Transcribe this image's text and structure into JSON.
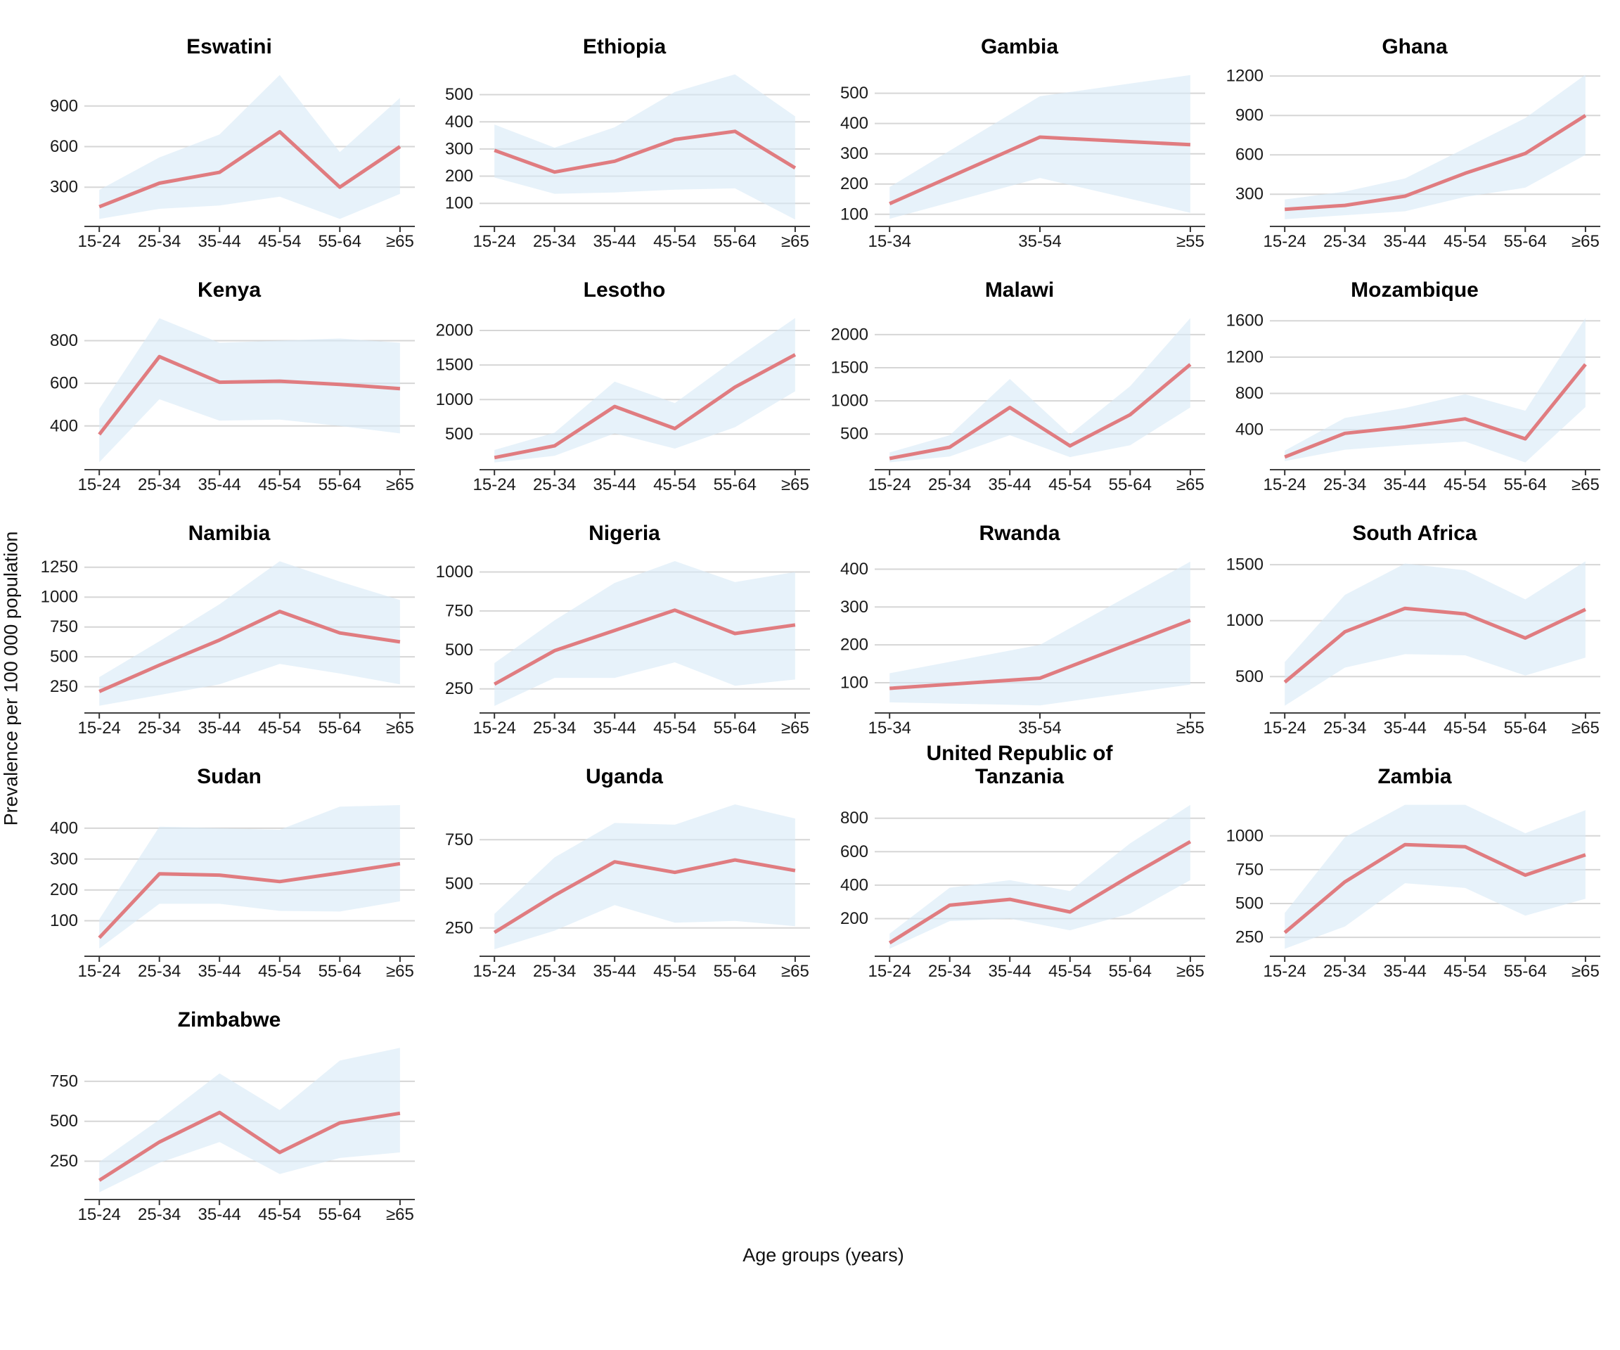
{
  "colors": {
    "line": "#e07c80",
    "band": "#d9eaf7",
    "grid": "#d6d6d6",
    "axis": "#404040",
    "tick": "#333333"
  },
  "chart_data": {
    "type": "line",
    "title": "",
    "xlabel": "Age groups (years)",
    "ylabel": "Prevalence per 100 000 population",
    "legend": "none",
    "note": "Each panel: red line = prevalence estimate, light blue ribbon = uncertainty interval, free y scales, grid on",
    "panels": [
      {
        "name": "Eswatini",
        "categories": [
          "15-24",
          "25-34",
          "35-44",
          "45-54",
          "55-64",
          "≥65"
        ],
        "values": [
          155,
          330,
          410,
          710,
          300,
          600
        ],
        "lower": [
          65,
          140,
          165,
          230,
          65,
          250
        ],
        "upper": [
          280,
          520,
          690,
          1130,
          560,
          960
        ],
        "yticks": [
          300,
          600,
          900
        ],
        "ylim": [
          10,
          1185
        ]
      },
      {
        "name": "Ethiopia",
        "categories": [
          "15-24",
          "25-34",
          "35-44",
          "45-54",
          "55-64",
          "≥65"
        ],
        "values": [
          295,
          215,
          255,
          335,
          365,
          230
        ],
        "lower": [
          195,
          135,
          140,
          150,
          155,
          40
        ],
        "upper": [
          390,
          305,
          380,
          510,
          575,
          420
        ],
        "yticks": [
          100,
          200,
          300,
          400,
          500
        ],
        "ylim": [
          15,
          600
        ]
      },
      {
        "name": "Gambia",
        "categories": [
          "15-34",
          "35-54",
          "≥55"
        ],
        "values": [
          135,
          355,
          330
        ],
        "lower": [
          85,
          220,
          105
        ],
        "upper": [
          190,
          490,
          560
        ],
        "yticks": [
          100,
          200,
          300,
          400,
          500
        ],
        "ylim": [
          60,
          585
        ]
      },
      {
        "name": "Ghana",
        "categories": [
          "15-24",
          "25-34",
          "35-44",
          "45-54",
          "55-64",
          "≥65"
        ],
        "values": [
          185,
          215,
          285,
          460,
          610,
          900
        ],
        "lower": [
          110,
          140,
          170,
          280,
          350,
          600
        ],
        "upper": [
          260,
          320,
          420,
          650,
          880,
          1210
        ],
        "yticks": [
          300,
          600,
          900,
          1200
        ],
        "ylim": [
          55,
          1265
        ]
      },
      {
        "name": "Kenya",
        "categories": [
          "15-24",
          "25-34",
          "35-44",
          "45-54",
          "55-64",
          "≥65"
        ],
        "values": [
          360,
          725,
          605,
          610,
          595,
          575
        ],
        "lower": [
          230,
          525,
          425,
          430,
          400,
          365
        ],
        "upper": [
          480,
          905,
          790,
          800,
          810,
          790
        ],
        "yticks": [
          400,
          600,
          800
        ],
        "ylim": [
          195,
          940
        ]
      },
      {
        "name": "Lesotho",
        "categories": [
          "15-24",
          "25-34",
          "35-44",
          "45-54",
          "55-64",
          "≥65"
        ],
        "values": [
          160,
          330,
          900,
          580,
          1180,
          1650
        ],
        "lower": [
          90,
          185,
          510,
          290,
          600,
          1120
        ],
        "upper": [
          270,
          520,
          1260,
          950,
          1580,
          2180
        ],
        "yticks": [
          500,
          1000,
          1500,
          2000
        ],
        "ylim": [
          -15,
          2285
        ]
      },
      {
        "name": "Malawi",
        "categories": [
          "15-24",
          "25-34",
          "35-44",
          "45-54",
          "55-64",
          "≥65"
        ],
        "values": [
          130,
          300,
          900,
          320,
          790,
          1550
        ],
        "lower": [
          70,
          160,
          480,
          150,
          330,
          900
        ],
        "upper": [
          220,
          480,
          1330,
          490,
          1220,
          2250
        ],
        "yticks": [
          500,
          1000,
          1500,
          2000
        ],
        "ylim": [
          -40,
          2360
        ]
      },
      {
        "name": "Mozambique",
        "categories": [
          "15-24",
          "25-34",
          "35-44",
          "45-54",
          "55-64",
          "≥65"
        ],
        "values": [
          100,
          360,
          430,
          520,
          300,
          1120
        ],
        "lower": [
          55,
          180,
          230,
          270,
          40,
          650
        ],
        "upper": [
          170,
          530,
          640,
          790,
          610,
          1630
        ],
        "yticks": [
          400,
          800,
          1200,
          1600
        ],
        "ylim": [
          -40,
          1710
        ]
      },
      {
        "name": "Namibia",
        "categories": [
          "15-24",
          "25-34",
          "35-44",
          "45-54",
          "55-64",
          "≥65"
        ],
        "values": [
          210,
          430,
          640,
          880,
          700,
          625
        ],
        "lower": [
          90,
          180,
          270,
          440,
          360,
          270
        ],
        "upper": [
          330,
          630,
          940,
          1300,
          1130,
          975
        ],
        "yticks": [
          250,
          500,
          750,
          1000,
          1250
        ],
        "ylim": [
          30,
          1360
        ]
      },
      {
        "name": "Nigeria",
        "categories": [
          "15-24",
          "25-34",
          "35-44",
          "45-54",
          "55-64",
          "≥65"
        ],
        "values": [
          280,
          495,
          625,
          755,
          605,
          660
        ],
        "lower": [
          140,
          320,
          320,
          420,
          270,
          310
        ],
        "upper": [
          415,
          690,
          930,
          1070,
          935,
          1000
        ],
        "yticks": [
          250,
          500,
          750,
          1000
        ],
        "ylim": [
          95,
          1115
        ]
      },
      {
        "name": "Rwanda",
        "categories": [
          "15-34",
          "35-54",
          "≥55"
        ],
        "values": [
          85,
          112,
          265
        ],
        "lower": [
          48,
          40,
          95
        ],
        "upper": [
          125,
          200,
          420
        ],
        "yticks": [
          100,
          200,
          300,
          400
        ],
        "ylim": [
          20,
          440
        ]
      },
      {
        "name": "South Africa",
        "categories": [
          "15-24",
          "25-34",
          "35-44",
          "45-54",
          "55-64",
          "≥65"
        ],
        "values": [
          450,
          900,
          1110,
          1060,
          845,
          1100
        ],
        "lower": [
          240,
          580,
          700,
          690,
          510,
          670
        ],
        "upper": [
          630,
          1230,
          1510,
          1450,
          1190,
          1530
        ],
        "yticks": [
          500,
          1000,
          1500
        ],
        "ylim": [
          175,
          1595
        ]
      },
      {
        "name": "Sudan",
        "categories": [
          "15-24",
          "25-34",
          "35-44",
          "45-54",
          "55-64",
          "≥65"
        ],
        "values": [
          45,
          252,
          248,
          227,
          255,
          285
        ],
        "lower": [
          10,
          155,
          155,
          132,
          130,
          163
        ],
        "upper": [
          105,
          405,
          400,
          395,
          470,
          475
        ],
        "yticks": [
          100,
          200,
          300,
          400
        ],
        "ylim": [
          -15,
          500
        ]
      },
      {
        "name": "Uganda",
        "categories": [
          "15-24",
          "25-34",
          "35-44",
          "45-54",
          "55-64",
          "≥65"
        ],
        "values": [
          225,
          435,
          625,
          565,
          635,
          575
        ],
        "lower": [
          130,
          235,
          380,
          280,
          290,
          260
        ],
        "upper": [
          330,
          650,
          845,
          835,
          950,
          870
        ],
        "yticks": [
          250,
          500,
          750
        ],
        "ylim": [
          90,
          990
        ]
      },
      {
        "name": "United Republic of Tanzania",
        "categories": [
          "15-24",
          "25-34",
          "35-44",
          "45-54",
          "55-64",
          "≥65"
        ],
        "values": [
          55,
          280,
          315,
          240,
          455,
          660
        ],
        "lower": [
          20,
          185,
          200,
          130,
          230,
          430
        ],
        "upper": [
          110,
          385,
          430,
          365,
          650,
          880
        ],
        "yticks": [
          200,
          400,
          600,
          800
        ],
        "ylim": [
          -25,
          925
        ]
      },
      {
        "name": "Zambia",
        "categories": [
          "15-24",
          "25-34",
          "35-44",
          "45-54",
          "55-64",
          "≥65"
        ],
        "values": [
          285,
          660,
          935,
          920,
          710,
          860
        ],
        "lower": [
          165,
          330,
          650,
          615,
          410,
          535
        ],
        "upper": [
          430,
          990,
          1230,
          1230,
          1020,
          1190
        ],
        "yticks": [
          250,
          500,
          750,
          1000
        ],
        "ylim": [
          110,
          1285
        ]
      },
      {
        "name": "Zimbabwe",
        "categories": [
          "15-24",
          "25-34",
          "35-44",
          "45-54",
          "55-64",
          "≥65"
        ],
        "values": [
          130,
          370,
          555,
          305,
          490,
          550
        ],
        "lower": [
          55,
          240,
          370,
          170,
          270,
          305
        ],
        "upper": [
          245,
          510,
          800,
          570,
          880,
          960
        ],
        "yticks": [
          250,
          500,
          750
        ],
        "ylim": [
          10,
          1005
        ]
      }
    ]
  }
}
